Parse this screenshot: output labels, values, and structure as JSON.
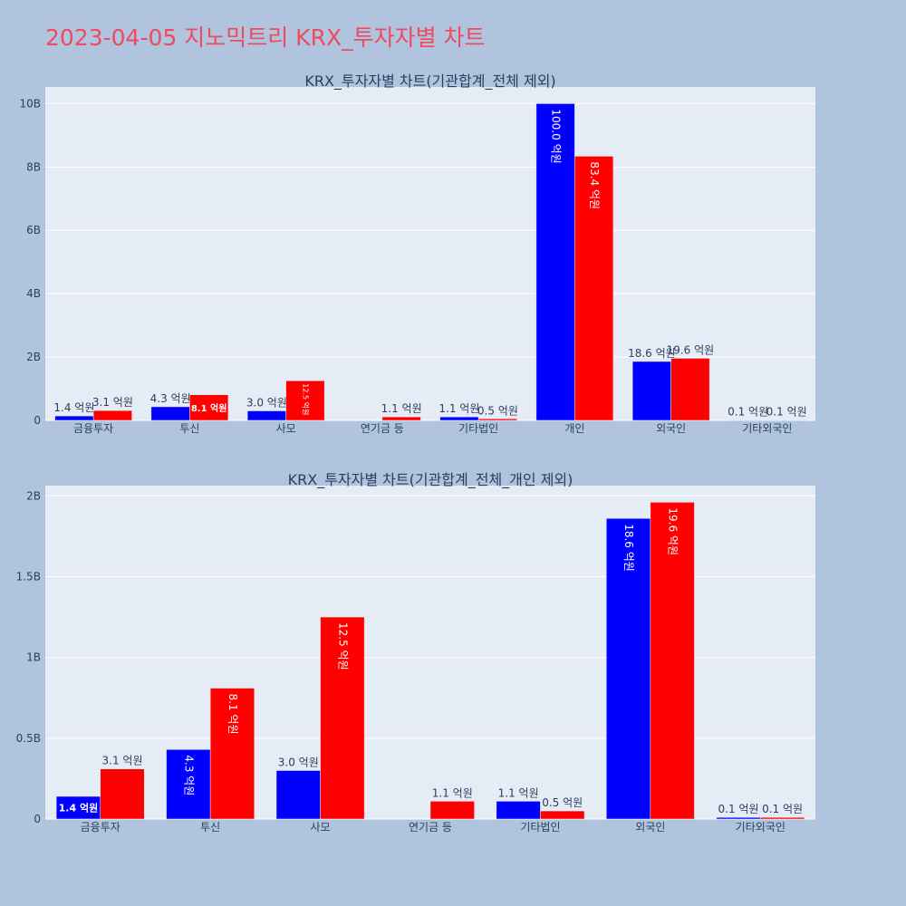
{
  "page_title": "2023-04-05 지노믹트리 KRX_투자자별 차트",
  "colors": {
    "buy": "#0000ff",
    "sell": "#ff0000",
    "plot_bg": "#e5ecf6",
    "page_bg": "#b0c4de",
    "title": "#ef4a5f"
  },
  "chart_data": [
    {
      "type": "bar",
      "title": "KRX_투자자별 차트(기관합계_전체 제외)",
      "categories": [
        "금융투자",
        "투신",
        "사모",
        "연기금 등",
        "기타법인",
        "개인",
        "외국인",
        "기타외국인"
      ],
      "series": [
        {
          "color": "#0000ff",
          "values": [
            140000000,
            430000000,
            300000000,
            0,
            110000000,
            10000000000,
            1860000000,
            10000000
          ],
          "labels": [
            "1.4 억원",
            "4.3 억원",
            "3.0 억원",
            "",
            "1.1 억원",
            "100.0 억원",
            "18.6 억원",
            "0.1 억원"
          ]
        },
        {
          "color": "#ff0000",
          "values": [
            310000000,
            810000000,
            1250000000,
            110000000,
            50000000,
            8340000000,
            1960000000,
            10000000
          ],
          "labels": [
            "3.1 억원",
            "8.1 억원",
            "12.5 억원",
            "1.1 억원",
            "0.5 억원",
            "83.4 억원",
            "19.6 억원",
            "0.1 억원"
          ]
        }
      ],
      "yticks": [
        0,
        2000000000,
        4000000000,
        6000000000,
        8000000000,
        10000000000
      ],
      "ytick_labels": [
        "0",
        "2B",
        "4B",
        "6B",
        "8B",
        "10B"
      ],
      "ylim": [
        0,
        10526315789
      ],
      "grid": true,
      "legend": "none"
    },
    {
      "type": "bar",
      "title": "KRX_투자자별 차트(기관합계_전체_개인 제외)",
      "categories": [
        "금융투자",
        "투신",
        "사모",
        "연기금 등",
        "기타법인",
        "외국인",
        "기타외국인"
      ],
      "series": [
        {
          "color": "#0000ff",
          "values": [
            140000000,
            430000000,
            300000000,
            0,
            110000000,
            1860000000,
            10000000
          ],
          "labels": [
            "1.4 억원",
            "4.3 억원",
            "3.0 억원",
            "",
            "1.1 억원",
            "18.6 억원",
            "0.1 억원"
          ]
        },
        {
          "color": "#ff0000",
          "values": [
            310000000,
            810000000,
            1250000000,
            110000000,
            50000000,
            1960000000,
            10000000
          ],
          "labels": [
            "3.1 억원",
            "8.1 억원",
            "12.5 억원",
            "1.1 억원",
            "0.5 억원",
            "19.6 억원",
            "0.1 억원"
          ]
        }
      ],
      "yticks": [
        0,
        500000000,
        1000000000,
        1500000000,
        2000000000
      ],
      "ytick_labels": [
        "0",
        "0.5B",
        "1B",
        "1.5B",
        "2B"
      ],
      "ylim": [
        0,
        2063157895
      ],
      "grid": true,
      "legend": "none"
    }
  ]
}
